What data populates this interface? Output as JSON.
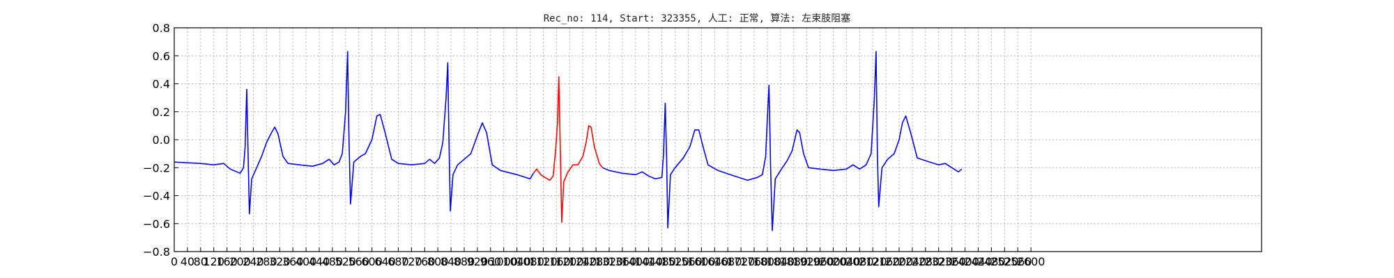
{
  "chart_data": {
    "type": "line",
    "title": "Rec_no: 114, Start: 323355, 人工: 正常, 算法: 左束肢阻塞",
    "xlabel": "",
    "ylabel": "",
    "xlim": [
      0,
      3300
    ],
    "ylim": [
      -0.8,
      0.8
    ],
    "grid": true,
    "x_tick_values": [
      0,
      40,
      80,
      120,
      160,
      200,
      240,
      280,
      320,
      360,
      400,
      440,
      480,
      520,
      560,
      600,
      640,
      680,
      720,
      760,
      800,
      840,
      880,
      920,
      960,
      1000,
      1040,
      1080,
      1120,
      1160,
      1200,
      1240,
      1280,
      1320,
      1360,
      1400,
      1440,
      1480,
      1520,
      1560,
      1600,
      1640,
      1680,
      1720,
      1760,
      1800,
      1840,
      1880,
      1920,
      1960,
      2000,
      2040,
      2080,
      2120,
      2160,
      2200,
      2240,
      2280,
      2320,
      2360,
      2400,
      2440,
      2480,
      2520,
      2560,
      2600
    ],
    "y_ticks": [
      "0.8",
      "0.6",
      "0.4",
      "0.2",
      "0.0",
      "−0.2",
      "−0.4",
      "−0.6",
      "−0.8"
    ],
    "y_tick_values": [
      0.8,
      0.6,
      0.4,
      0.2,
      0.0,
      -0.2,
      -0.4,
      -0.6,
      -0.8
    ],
    "series": [
      {
        "color": "#0000ff",
        "points": [
          [
            0,
            -0.16
          ],
          [
            40,
            -0.165
          ],
          [
            80,
            -0.17
          ],
          [
            120,
            -0.18
          ],
          [
            150,
            -0.17
          ],
          [
            170,
            -0.21
          ],
          [
            200,
            -0.24
          ],
          [
            210,
            -0.2
          ],
          [
            215,
            -0.06
          ],
          [
            220,
            0.36
          ],
          [
            224,
            -0.1
          ],
          [
            228,
            -0.53
          ],
          [
            235,
            -0.28
          ],
          [
            250,
            -0.2
          ],
          [
            265,
            -0.12
          ],
          [
            280,
            -0.02
          ],
          [
            295,
            0.05
          ],
          [
            305,
            0.09
          ],
          [
            315,
            0.04
          ],
          [
            330,
            -0.12
          ],
          [
            345,
            -0.17
          ],
          [
            380,
            -0.18
          ],
          [
            420,
            -0.19
          ],
          [
            450,
            -0.17
          ],
          [
            470,
            -0.14
          ],
          [
            485,
            -0.18
          ],
          [
            500,
            -0.16
          ],
          [
            510,
            -0.1
          ],
          [
            520,
            0.2
          ],
          [
            526,
            0.63
          ],
          [
            530,
            0.05
          ],
          [
            535,
            -0.46
          ],
          [
            545,
            -0.16
          ],
          [
            565,
            -0.12
          ],
          [
            580,
            -0.1
          ],
          [
            600,
            0.0
          ],
          [
            615,
            0.17
          ],
          [
            625,
            0.18
          ],
          [
            640,
            0.05
          ],
          [
            660,
            -0.14
          ],
          [
            680,
            -0.17
          ],
          [
            720,
            -0.18
          ],
          [
            760,
            -0.17
          ],
          [
            775,
            -0.14
          ],
          [
            790,
            -0.17
          ],
          [
            805,
            -0.13
          ],
          [
            815,
            -0.02
          ],
          [
            825,
            0.3
          ],
          [
            830,
            0.55
          ],
          [
            834,
            -0.05
          ],
          [
            838,
            -0.51
          ],
          [
            846,
            -0.25
          ],
          [
            860,
            -0.18
          ],
          [
            880,
            -0.14
          ],
          [
            900,
            -0.1
          ],
          [
            920,
            0.03
          ],
          [
            935,
            0.12
          ],
          [
            948,
            0.05
          ],
          [
            965,
            -0.18
          ],
          [
            990,
            -0.22
          ],
          [
            1040,
            -0.25
          ],
          [
            1080,
            -0.28
          ],
          [
            1090,
            -0.24
          ]
        ]
      },
      {
        "color": "#ff0000",
        "points": [
          [
            1090,
            -0.24
          ],
          [
            1100,
            -0.21
          ],
          [
            1112,
            -0.25
          ],
          [
            1125,
            -0.27
          ],
          [
            1140,
            -0.29
          ],
          [
            1150,
            -0.26
          ],
          [
            1158,
            -0.06
          ],
          [
            1163,
            0.12
          ],
          [
            1167,
            0.45
          ],
          [
            1172,
            -0.1
          ],
          [
            1176,
            -0.59
          ],
          [
            1182,
            -0.3
          ],
          [
            1195,
            -0.23
          ],
          [
            1210,
            -0.18
          ],
          [
            1225,
            -0.18
          ],
          [
            1240,
            -0.12
          ],
          [
            1250,
            -0.02
          ],
          [
            1258,
            0.1
          ],
          [
            1265,
            0.09
          ],
          [
            1275,
            -0.05
          ],
          [
            1290,
            -0.17
          ],
          [
            1300,
            -0.2
          ]
        ]
      },
      {
        "color": "#0000ff",
        "points": [
          [
            1300,
            -0.2
          ],
          [
            1320,
            -0.22
          ],
          [
            1360,
            -0.24
          ],
          [
            1400,
            -0.25
          ],
          [
            1420,
            -0.23
          ],
          [
            1440,
            -0.26
          ],
          [
            1460,
            -0.28
          ],
          [
            1480,
            -0.27
          ],
          [
            1485,
            -0.1
          ],
          [
            1490,
            0.26
          ],
          [
            1494,
            -0.1
          ],
          [
            1498,
            -0.63
          ],
          [
            1506,
            -0.25
          ],
          [
            1520,
            -0.2
          ],
          [
            1545,
            -0.13
          ],
          [
            1565,
            -0.05
          ],
          [
            1580,
            0.07
          ],
          [
            1592,
            0.07
          ],
          [
            1605,
            -0.05
          ],
          [
            1620,
            -0.18
          ],
          [
            1650,
            -0.22
          ],
          [
            1700,
            -0.26
          ],
          [
            1740,
            -0.29
          ],
          [
            1770,
            -0.27
          ],
          [
            1785,
            -0.25
          ],
          [
            1795,
            -0.12
          ],
          [
            1800,
            0.15
          ],
          [
            1805,
            0.39
          ],
          [
            1810,
            -0.2
          ],
          [
            1815,
            -0.65
          ],
          [
            1824,
            -0.28
          ],
          [
            1840,
            -0.22
          ],
          [
            1860,
            -0.15
          ],
          [
            1875,
            -0.08
          ],
          [
            1890,
            0.07
          ],
          [
            1898,
            0.05
          ],
          [
            1910,
            -0.1
          ],
          [
            1925,
            -0.2
          ],
          [
            1960,
            -0.21
          ],
          [
            2000,
            -0.22
          ],
          [
            2040,
            -0.21
          ],
          [
            2060,
            -0.18
          ],
          [
            2080,
            -0.21
          ],
          [
            2100,
            -0.18
          ],
          [
            2115,
            -0.1
          ],
          [
            2125,
            0.3
          ],
          [
            2130,
            0.63
          ],
          [
            2134,
            -0.1
          ],
          [
            2138,
            -0.48
          ],
          [
            2148,
            -0.2
          ],
          [
            2165,
            -0.14
          ],
          [
            2185,
            -0.1
          ],
          [
            2200,
            0.0
          ],
          [
            2210,
            0.12
          ],
          [
            2220,
            0.17
          ],
          [
            2235,
            0.05
          ],
          [
            2255,
            -0.13
          ],
          [
            2280,
            -0.15
          ],
          [
            2320,
            -0.18
          ],
          [
            2340,
            -0.17
          ],
          [
            2360,
            -0.2
          ],
          [
            2380,
            -0.23
          ],
          [
            2390,
            -0.21
          ]
        ]
      }
    ]
  }
}
